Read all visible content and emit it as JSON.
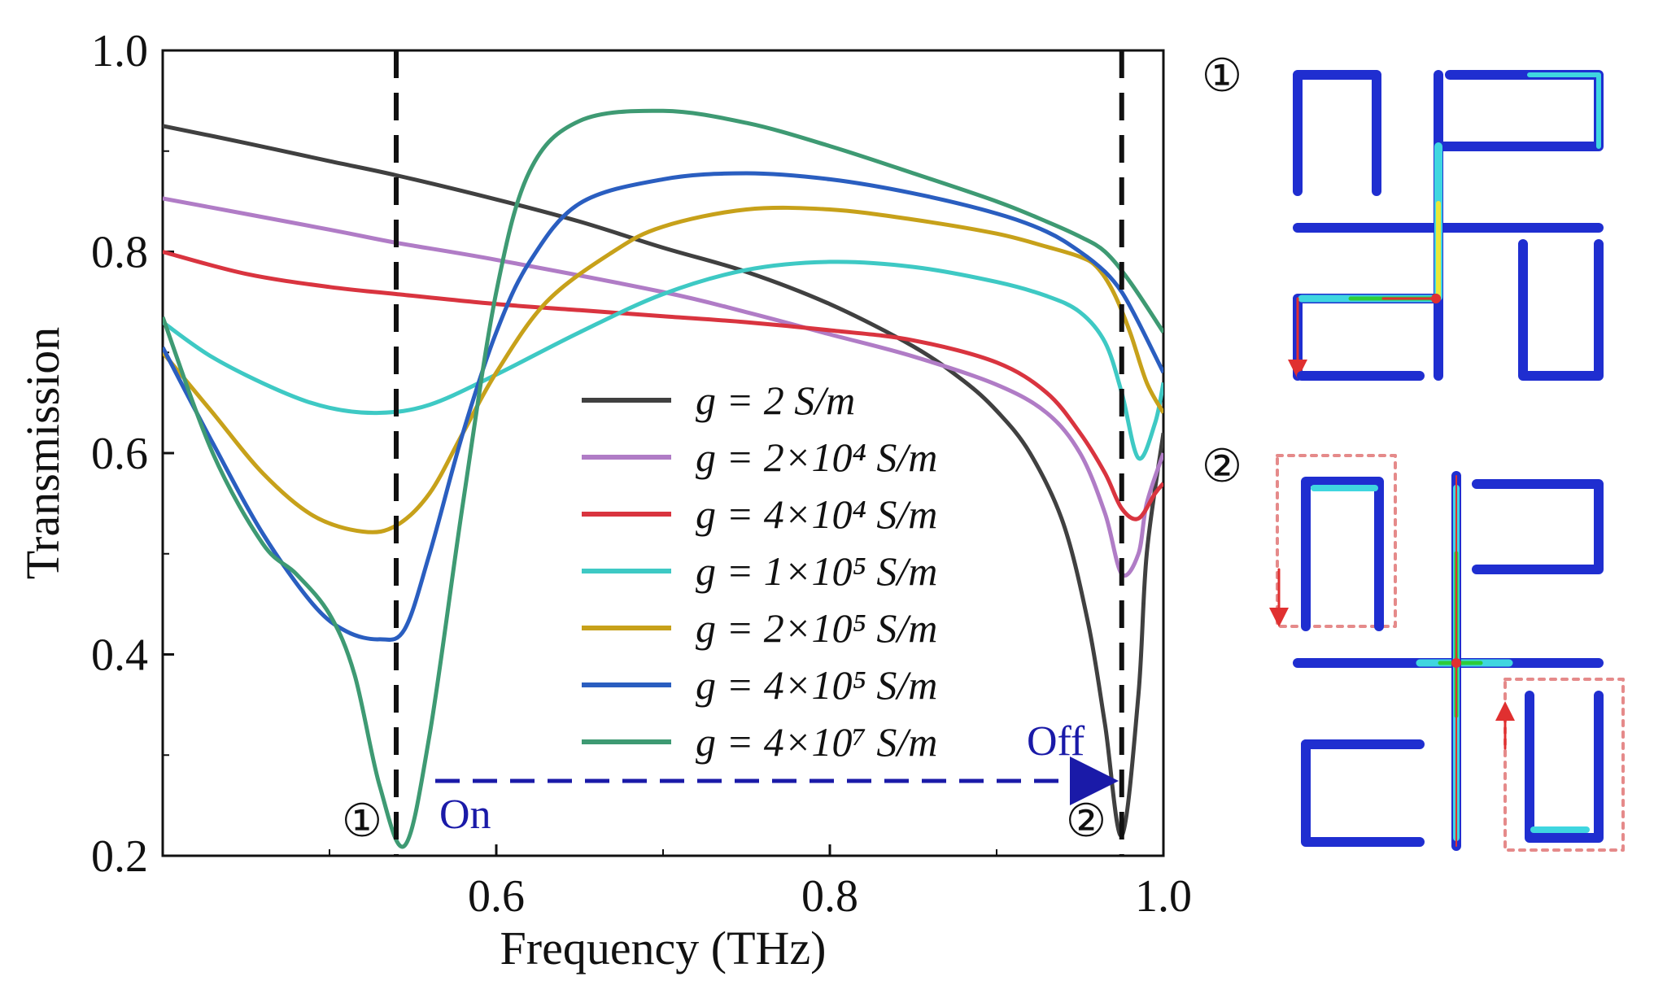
{
  "chart_data": {
    "type": "line",
    "title": "",
    "xlabel": "Frequency (THz)",
    "ylabel": "Transmission",
    "xlim": [
      0.4,
      1.0
    ],
    "ylim": [
      0.2,
      1.0
    ],
    "xticks": [
      0.6,
      0.8,
      1.0
    ],
    "xtick_labels": [
      "0.6",
      "0.8",
      "1.0"
    ],
    "yticks": [
      0.2,
      0.4,
      0.6,
      0.8,
      1.0
    ],
    "ytick_labels": [
      "0.2",
      "0.4",
      "0.6",
      "0.8",
      "1.0"
    ],
    "grid": false,
    "legend_position": "center-right",
    "series": [
      {
        "name": "g = 2 S/m",
        "label_text": "g = 2 S/m",
        "color": "#404040",
        "x": [
          0.4,
          0.45,
          0.5,
          0.54,
          0.6,
          0.65,
          0.7,
          0.75,
          0.8,
          0.85,
          0.88,
          0.9,
          0.92,
          0.94,
          0.955,
          0.965,
          0.975,
          0.985,
          0.99,
          1.0
        ],
        "y": [
          0.925,
          0.908,
          0.89,
          0.876,
          0.852,
          0.83,
          0.804,
          0.78,
          0.748,
          0.706,
          0.672,
          0.642,
          0.6,
          0.53,
          0.43,
          0.33,
          0.22,
          0.36,
          0.5,
          0.62
        ]
      },
      {
        "name": "g = 2×10^4 S/m",
        "label_text": "g = 2×10⁴ S/m",
        "color": "#b07cc6",
        "x": [
          0.4,
          0.5,
          0.54,
          0.6,
          0.7,
          0.75,
          0.8,
          0.85,
          0.9,
          0.93,
          0.95,
          0.965,
          0.975,
          0.985,
          0.99,
          1.0
        ],
        "y": [
          0.853,
          0.822,
          0.809,
          0.792,
          0.76,
          0.74,
          0.718,
          0.696,
          0.668,
          0.64,
          0.6,
          0.54,
          0.48,
          0.5,
          0.55,
          0.6
        ]
      },
      {
        "name": "g = 4×10^4 S/m",
        "label_text": "g = 4×10⁴ S/m",
        "color": "#d9343f",
        "x": [
          0.4,
          0.45,
          0.5,
          0.54,
          0.6,
          0.65,
          0.7,
          0.75,
          0.8,
          0.85,
          0.9,
          0.93,
          0.95,
          0.965,
          0.975,
          0.985,
          0.995,
          1.0
        ],
        "y": [
          0.8,
          0.778,
          0.765,
          0.758,
          0.748,
          0.742,
          0.736,
          0.73,
          0.722,
          0.712,
          0.69,
          0.66,
          0.62,
          0.58,
          0.545,
          0.535,
          0.56,
          0.57
        ]
      },
      {
        "name": "g = 1×10^5 S/m",
        "label_text": "g = 1×10⁵ S/m",
        "color": "#3ec9c4",
        "x": [
          0.4,
          0.43,
          0.47,
          0.5,
          0.53,
          0.56,
          0.6,
          0.65,
          0.7,
          0.75,
          0.8,
          0.85,
          0.9,
          0.93,
          0.95,
          0.965,
          0.975,
          0.985,
          0.995,
          1.0
        ],
        "y": [
          0.73,
          0.695,
          0.662,
          0.645,
          0.64,
          0.648,
          0.678,
          0.72,
          0.758,
          0.782,
          0.79,
          0.785,
          0.77,
          0.756,
          0.74,
          0.71,
          0.66,
          0.595,
          0.63,
          0.67
        ]
      },
      {
        "name": "g = 2×10^5 S/m",
        "label_text": "g = 2×10⁵ S/m",
        "color": "#c7a11a",
        "x": [
          0.4,
          0.43,
          0.46,
          0.49,
          0.52,
          0.54,
          0.56,
          0.58,
          0.6,
          0.63,
          0.67,
          0.7,
          0.75,
          0.8,
          0.85,
          0.9,
          0.93,
          0.95,
          0.96,
          0.97,
          0.98,
          0.99,
          1.0
        ],
        "y": [
          0.7,
          0.64,
          0.58,
          0.538,
          0.522,
          0.528,
          0.56,
          0.62,
          0.68,
          0.75,
          0.8,
          0.825,
          0.842,
          0.842,
          0.832,
          0.818,
          0.805,
          0.795,
          0.785,
          0.76,
          0.72,
          0.67,
          0.64
        ]
      },
      {
        "name": "g = 4×10^5 S/m",
        "label_text": "g = 4×10⁵ S/m",
        "color": "#2a5ec0",
        "x": [
          0.4,
          0.43,
          0.46,
          0.49,
          0.51,
          0.53,
          0.545,
          0.56,
          0.58,
          0.6,
          0.62,
          0.65,
          0.7,
          0.75,
          0.8,
          0.85,
          0.9,
          0.93,
          0.95,
          0.965,
          0.975,
          0.985,
          1.0
        ],
        "y": [
          0.705,
          0.61,
          0.52,
          0.45,
          0.423,
          0.415,
          0.425,
          0.5,
          0.62,
          0.72,
          0.79,
          0.848,
          0.872,
          0.878,
          0.872,
          0.858,
          0.838,
          0.82,
          0.8,
          0.78,
          0.76,
          0.73,
          0.68
        ]
      },
      {
        "name": "g = 4×10^7 S/m",
        "label_text": "g = 4×10⁷ S/m",
        "color": "#3e9a73",
        "x": [
          0.4,
          0.43,
          0.46,
          0.48,
          0.5,
          0.515,
          0.53,
          0.545,
          0.56,
          0.58,
          0.6,
          0.62,
          0.65,
          0.7,
          0.75,
          0.8,
          0.85,
          0.9,
          0.93,
          0.95,
          0.965,
          0.98,
          1.0
        ],
        "y": [
          0.735,
          0.6,
          0.51,
          0.48,
          0.44,
          0.38,
          0.27,
          0.21,
          0.32,
          0.55,
          0.76,
          0.88,
          0.93,
          0.94,
          0.928,
          0.905,
          0.878,
          0.85,
          0.83,
          0.815,
          0.8,
          0.77,
          0.72
        ]
      }
    ],
    "annotations": {
      "marker_1": "①",
      "marker_2": "②",
      "on_label": "On",
      "off_label": "Off",
      "line_1_x": 0.54,
      "line_2_x": 0.975
    }
  },
  "insets": {
    "label_1": "①",
    "label_2": "②"
  },
  "colors": {
    "axis": "#111111",
    "dashed_marker": "#111111",
    "annotation_arrow": "#1a1aa8",
    "current_arrows": "#1f2ed0",
    "highlight_cyan": "#3fd6e0",
    "highlight_green": "#2ecc3a",
    "highlight_yellow": "#e8e83a",
    "highlight_red": "#e03030",
    "dotted_box": "#e58a8a"
  }
}
